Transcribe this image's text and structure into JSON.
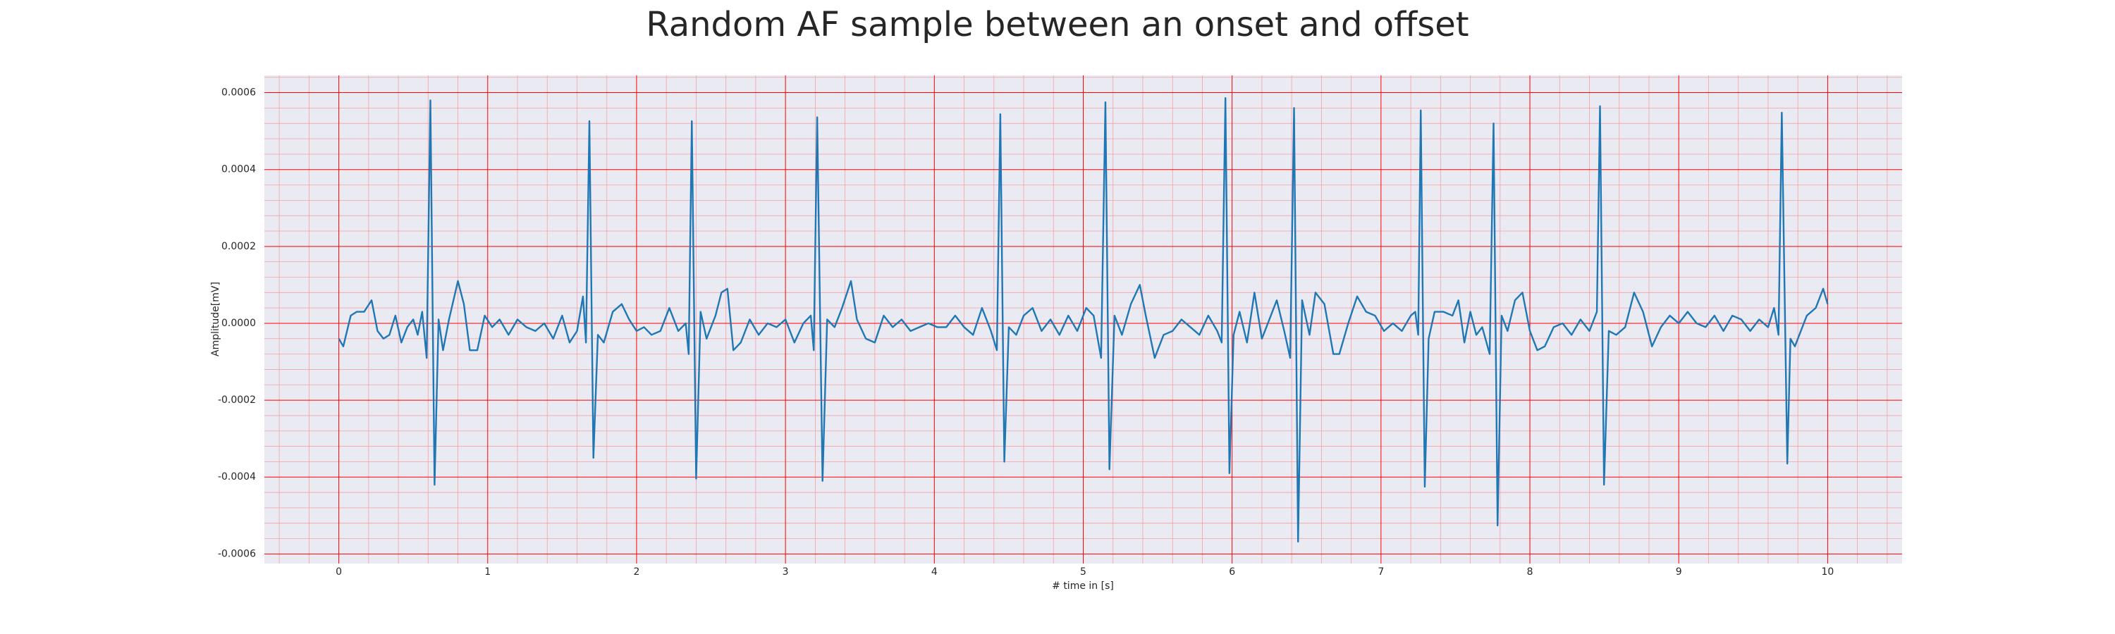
{
  "chart_data": {
    "type": "line",
    "title": "Random AF sample between an onset and offset",
    "xlabel": "# time in [s]",
    "ylabel": "Amplitude[mV]",
    "x": [
      0,
      0.03,
      0.08,
      0.12,
      0.17,
      0.22,
      0.26,
      0.3,
      0.34,
      0.38,
      0.42,
      0.46,
      0.5,
      0.53,
      0.56,
      0.59,
      0.615,
      0.643,
      0.67,
      0.7,
      0.74,
      0.8,
      0.84,
      0.88,
      0.93,
      0.98,
      1.03,
      1.08,
      1.14,
      1.2,
      1.26,
      1.32,
      1.38,
      1.44,
      1.5,
      1.55,
      1.6,
      1.64,
      1.66,
      1.683,
      1.71,
      1.74,
      1.78,
      1.84,
      1.9,
      1.95,
      2.0,
      2.05,
      2.1,
      2.16,
      2.22,
      2.28,
      2.33,
      2.35,
      2.371,
      2.4,
      2.43,
      2.47,
      2.53,
      2.57,
      2.61,
      2.65,
      2.7,
      2.76,
      2.82,
      2.88,
      2.94,
      3.0,
      3.06,
      3.12,
      3.17,
      3.19,
      3.213,
      3.249,
      3.28,
      3.33,
      3.38,
      3.44,
      3.48,
      3.54,
      3.6,
      3.66,
      3.72,
      3.78,
      3.84,
      3.9,
      3.96,
      4.02,
      4.08,
      4.14,
      4.2,
      4.26,
      4.32,
      4.38,
      4.42,
      4.443,
      4.47,
      4.5,
      4.55,
      4.6,
      4.66,
      4.72,
      4.78,
      4.84,
      4.9,
      4.96,
      5.02,
      5.07,
      5.12,
      5.149,
      5.176,
      5.21,
      5.26,
      5.32,
      5.38,
      5.42,
      5.48,
      5.54,
      5.6,
      5.66,
      5.72,
      5.78,
      5.84,
      5.9,
      5.93,
      5.955,
      5.982,
      6.01,
      6.05,
      6.1,
      6.15,
      6.2,
      6.26,
      6.3,
      6.35,
      6.39,
      6.416,
      6.443,
      6.47,
      6.52,
      6.56,
      6.62,
      6.68,
      6.72,
      6.78,
      6.84,
      6.9,
      6.96,
      7.02,
      7.08,
      7.14,
      7.2,
      7.23,
      7.25,
      7.267,
      7.294,
      7.32,
      7.36,
      7.42,
      7.48,
      7.52,
      7.56,
      7.6,
      7.64,
      7.68,
      7.73,
      7.756,
      7.783,
      7.81,
      7.85,
      7.9,
      7.95,
      8.0,
      8.05,
      8.1,
      8.16,
      8.22,
      8.28,
      8.34,
      8.4,
      8.45,
      8.471,
      8.498,
      8.53,
      8.58,
      8.64,
      8.7,
      8.76,
      8.82,
      8.88,
      8.94,
      9.0,
      9.06,
      9.12,
      9.18,
      9.24,
      9.3,
      9.36,
      9.42,
      9.48,
      9.54,
      9.6,
      9.64,
      9.67,
      9.692,
      9.729,
      9.75,
      9.78,
      9.82,
      9.86,
      9.92,
      9.97,
      10.0
    ],
    "series": [
      {
        "color": "#1f77b4",
        "values": [
          -4e-05,
          -6e-05,
          2e-05,
          3e-05,
          3e-05,
          6e-05,
          -2e-05,
          -4e-05,
          -3e-05,
          2e-05,
          -5e-05,
          -1e-05,
          1e-05,
          -3e-05,
          3e-05,
          -9e-05,
          0.00058,
          -0.00042,
          1e-05,
          -7e-05,
          1e-05,
          0.00011,
          5e-05,
          -7e-05,
          -7e-05,
          2e-05,
          -1e-05,
          1e-05,
          -3e-05,
          1e-05,
          -1e-05,
          -2e-05,
          0,
          -4e-05,
          2e-05,
          -5e-05,
          -2e-05,
          7e-05,
          -5e-05,
          0.000526,
          -0.00035,
          -3e-05,
          -5e-05,
          3e-05,
          5e-05,
          1e-05,
          -2e-05,
          -1e-05,
          -3e-05,
          -2e-05,
          4e-05,
          -2e-05,
          0,
          -8e-05,
          0.000526,
          -0.000404,
          3e-05,
          -4e-05,
          2e-05,
          8e-05,
          9e-05,
          -7e-05,
          -5e-05,
          1e-05,
          -3e-05,
          0,
          -1e-05,
          1e-05,
          -5e-05,
          0,
          2e-05,
          -7e-05,
          0.000536,
          -0.00041,
          1e-05,
          -1e-05,
          4e-05,
          0.00011,
          1e-05,
          -4e-05,
          -5e-05,
          2e-05,
          -1e-05,
          1e-05,
          -2e-05,
          -1e-05,
          0,
          -1e-05,
          -1e-05,
          2e-05,
          -1e-05,
          -3e-05,
          4e-05,
          -2e-05,
          -7e-05,
          0.000544,
          -0.00036,
          -1e-05,
          -3e-05,
          2e-05,
          4e-05,
          -2e-05,
          1e-05,
          -3e-05,
          2e-05,
          -2e-05,
          4e-05,
          2e-05,
          -9e-05,
          0.000575,
          -0.00038,
          2e-05,
          -3e-05,
          5e-05,
          0.0001,
          2e-05,
          -9e-05,
          -3e-05,
          -2e-05,
          1e-05,
          -1e-05,
          -3e-05,
          2e-05,
          -2e-05,
          -5e-05,
          0.000586,
          -0.00039,
          -3e-05,
          3e-05,
          -5e-05,
          8e-05,
          -4e-05,
          2e-05,
          6e-05,
          -2e-05,
          -9e-05,
          0.00056,
          -0.000568,
          6e-05,
          -3e-05,
          8e-05,
          5e-05,
          -8e-05,
          -8e-05,
          0,
          7e-05,
          3e-05,
          2e-05,
          -2e-05,
          0,
          -2e-05,
          2e-05,
          3e-05,
          -3e-05,
          0.000554,
          -0.000425,
          -4e-05,
          3e-05,
          3e-05,
          2e-05,
          6e-05,
          -5e-05,
          3e-05,
          -3e-05,
          -1e-05,
          -8e-05,
          0.00052,
          -0.000526,
          2e-05,
          -2e-05,
          6e-05,
          8e-05,
          -2e-05,
          -7e-05,
          -6e-05,
          -1e-05,
          0,
          -3e-05,
          1e-05,
          -2e-05,
          3e-05,
          0.000565,
          -0.00042,
          -2e-05,
          -3e-05,
          -1e-05,
          8e-05,
          3e-05,
          -6e-05,
          -1e-05,
          2e-05,
          0,
          3e-05,
          0,
          -1e-05,
          2e-05,
          -2e-05,
          2e-05,
          1e-05,
          -2e-05,
          1e-05,
          -1e-05,
          4e-05,
          -3e-05,
          0.000548,
          -0.000365,
          -4e-05,
          -6e-05,
          -2e-05,
          2e-05,
          4e-05,
          9e-05,
          5e-05
        ]
      }
    ],
    "xlim": [
      -0.5,
      10.5
    ],
    "xticks": [
      0,
      1,
      2,
      3,
      4,
      5,
      6,
      7,
      8,
      9,
      10
    ],
    "ylim": [
      -0.000625,
      0.000645
    ],
    "yticks": [
      {
        "value": -0.0006,
        "label": "-0.0006"
      },
      {
        "value": -0.0004,
        "label": "-0.0004"
      },
      {
        "value": -0.0002,
        "label": "-0.0002"
      },
      {
        "value": 0,
        "label": "0.0000"
      },
      {
        "value": 0.0002,
        "label": "0.0002"
      },
      {
        "value": 0.0004,
        "label": "0.0004"
      },
      {
        "value": 0.0006,
        "label": "0.0006"
      }
    ],
    "grid": true,
    "grid_color": "#ff0000",
    "minor_grid_color": "#f4a0a8",
    "minor_divisions": 5,
    "background": "#eaeaf2"
  }
}
